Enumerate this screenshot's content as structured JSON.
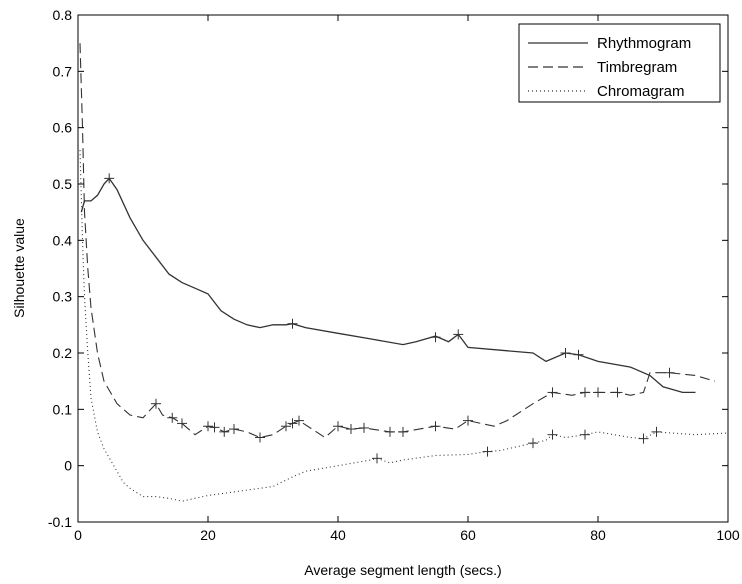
{
  "chart_data": {
    "type": "line",
    "xlabel": "Average segment length (secs.)",
    "ylabel": "Silhouette value",
    "xlim": [
      0,
      100
    ],
    "ylim": [
      -0.1,
      0.8
    ],
    "xticks": [
      0,
      20,
      40,
      60,
      80,
      100
    ],
    "yticks": [
      -0.1,
      0,
      0.1,
      0.2,
      0.3,
      0.4,
      0.5,
      0.6,
      0.7,
      0.8
    ],
    "xtick_labels": [
      "0",
      "20",
      "40",
      "60",
      "80",
      "100"
    ],
    "ytick_labels": [
      "-0.1",
      "0",
      "0.1",
      "0.2",
      "0.3",
      "0.4",
      "0.5",
      "0.6",
      "0.7",
      "0.8"
    ],
    "grid": false,
    "legend_position": "top-right",
    "series": [
      {
        "name": "Rhythmogram",
        "style": "solid",
        "x": [
          0.5,
          1,
          2,
          3,
          4,
          4.8,
          6,
          8,
          10,
          12,
          14,
          16,
          18,
          20,
          22,
          24,
          26,
          28,
          30,
          32,
          33,
          35,
          40,
          45,
          50,
          52,
          55,
          57,
          58.5,
          60,
          65,
          70,
          72,
          75,
          77,
          80,
          85,
          88,
          90,
          93,
          95
        ],
        "y": [
          0.45,
          0.47,
          0.47,
          0.48,
          0.5,
          0.51,
          0.49,
          0.44,
          0.4,
          0.37,
          0.34,
          0.325,
          0.315,
          0.305,
          0.275,
          0.26,
          0.25,
          0.245,
          0.25,
          0.25,
          0.252,
          0.245,
          0.235,
          0.225,
          0.215,
          0.22,
          0.23,
          0.22,
          0.233,
          0.21,
          0.205,
          0.2,
          0.185,
          0.2,
          0.197,
          0.185,
          0.175,
          0.16,
          0.14,
          0.13,
          0.13
        ],
        "markers_x": [
          4.8,
          33,
          55,
          58.5,
          75,
          77
        ],
        "markers_y": [
          0.51,
          0.252,
          0.228,
          0.233,
          0.2,
          0.197
        ]
      },
      {
        "name": "Timbregram",
        "style": "dashed",
        "x": [
          0.3,
          0.7,
          1,
          1.5,
          2,
          3,
          4,
          6,
          8,
          10,
          12,
          13,
          14.5,
          16,
          18,
          20,
          21,
          22.5,
          24,
          26,
          28,
          30,
          32,
          33,
          34,
          38,
          40,
          42,
          44,
          48,
          50,
          55,
          58,
          60,
          62,
          64,
          66,
          70,
          73,
          76,
          78,
          80,
          83,
          85,
          87,
          88,
          91,
          95,
          98
        ],
        "y": [
          0.75,
          0.6,
          0.45,
          0.35,
          0.28,
          0.2,
          0.15,
          0.11,
          0.09,
          0.085,
          0.11,
          0.09,
          0.085,
          0.075,
          0.055,
          0.07,
          0.068,
          0.06,
          0.065,
          0.06,
          0.05,
          0.055,
          0.07,
          0.075,
          0.08,
          0.05,
          0.07,
          0.065,
          0.067,
          0.06,
          0.06,
          0.07,
          0.065,
          0.08,
          0.075,
          0.07,
          0.08,
          0.11,
          0.13,
          0.125,
          0.13,
          0.13,
          0.13,
          0.125,
          0.13,
          0.165,
          0.165,
          0.16,
          0.15
        ],
        "markers_x": [
          12,
          14.5,
          16,
          20,
          21,
          22.5,
          24,
          28,
          32,
          33,
          34,
          40,
          42,
          44,
          48,
          50,
          55,
          60,
          73,
          78,
          80,
          83,
          91
        ],
        "markers_y": [
          0.11,
          0.085,
          0.075,
          0.07,
          0.068,
          0.06,
          0.065,
          0.05,
          0.07,
          0.075,
          0.08,
          0.07,
          0.065,
          0.067,
          0.06,
          0.06,
          0.07,
          0.08,
          0.13,
          0.13,
          0.13,
          0.13,
          0.165
        ]
      },
      {
        "name": "Chromagram",
        "style": "dotted",
        "x": [
          0.3,
          0.7,
          1,
          1.5,
          2,
          3,
          4,
          5,
          6,
          7,
          8,
          10,
          12,
          14,
          16,
          18,
          20,
          25,
          30,
          33,
          35,
          40,
          45,
          46,
          48,
          50,
          55,
          60,
          63,
          65,
          70,
          72,
          73,
          75,
          78,
          80,
          85,
          87,
          89,
          95,
          100
        ],
        "y": [
          0.56,
          0.4,
          0.3,
          0.2,
          0.12,
          0.06,
          0.03,
          0.01,
          -0.01,
          -0.03,
          -0.04,
          -0.055,
          -0.055,
          -0.058,
          -0.063,
          -0.058,
          -0.053,
          -0.045,
          -0.037,
          -0.02,
          -0.01,
          0,
          0.01,
          0.013,
          0.005,
          0.01,
          0.018,
          0.02,
          0.025,
          0.027,
          0.04,
          0.045,
          0.055,
          0.05,
          0.055,
          0.06,
          0.05,
          0.048,
          0.06,
          0.055,
          0.058
        ],
        "markers_x": [
          46,
          63,
          70,
          73,
          78,
          87,
          89
        ],
        "markers_y": [
          0.013,
          0.025,
          0.04,
          0.055,
          0.055,
          0.048,
          0.06
        ]
      }
    ]
  }
}
